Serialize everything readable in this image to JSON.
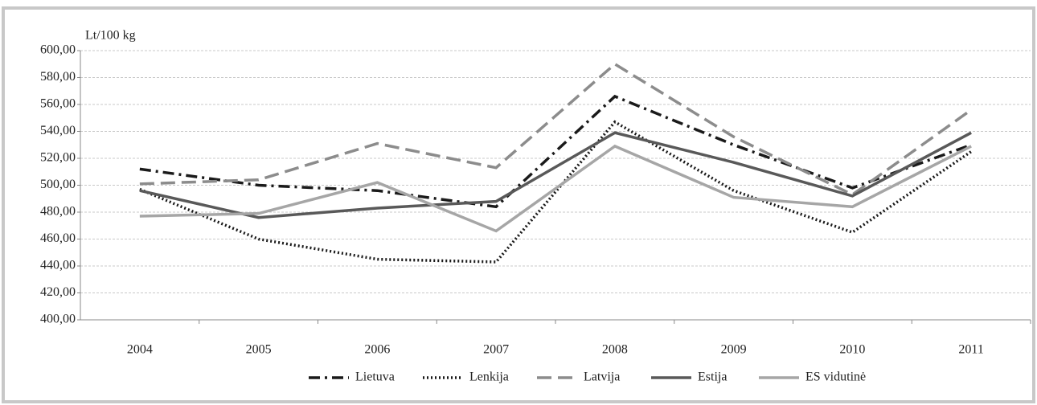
{
  "chart_data": {
    "type": "line",
    "ylabel": "Lt/100 kg",
    "categories": [
      "2004",
      "2005",
      "2006",
      "2007",
      "2008",
      "2009",
      "2010",
      "2011"
    ],
    "series": [
      {
        "name": "Lietuva",
        "color": "#1a1a1a",
        "dash": "14 6 3 6",
        "values": [
          512,
          500,
          496,
          484,
          566,
          530,
          498,
          530
        ]
      },
      {
        "name": "Lenkija",
        "color": "#1a1a1a",
        "dash": "2 3",
        "values": [
          497,
          460,
          445,
          443,
          547,
          496,
          465,
          525
        ]
      },
      {
        "name": "Latvija",
        "color": "#8c8c8c",
        "dash": "18 8",
        "values": [
          501,
          504,
          531,
          513,
          590,
          536,
          493,
          556
        ]
      },
      {
        "name": "Estija",
        "color": "#595959",
        "dash": "none",
        "values": [
          496,
          476,
          483,
          488,
          539,
          517,
          492,
          539
        ]
      },
      {
        "name": "ES vidutinė",
        "color": "#a6a6a6",
        "dash": "none",
        "values": [
          477,
          479,
          502,
          466,
          529,
          491,
          484,
          529
        ]
      }
    ],
    "ylim": [
      400,
      600
    ],
    "yticks": [
      {
        "value": 400,
        "label": "400,00"
      },
      {
        "value": 420,
        "label": "420,00"
      },
      {
        "value": 440,
        "label": "440,00"
      },
      {
        "value": 460,
        "label": "460,00"
      },
      {
        "value": 480,
        "label": "480,00"
      },
      {
        "value": 500,
        "label": "500,00"
      },
      {
        "value": 520,
        "label": "520,00"
      },
      {
        "value": 540,
        "label": "540,00"
      },
      {
        "value": 560,
        "label": "560,00"
      },
      {
        "value": 580,
        "label": "580,00"
      },
      {
        "value": 600,
        "label": "600,00"
      }
    ],
    "grid": true,
    "legend": "bottom"
  }
}
